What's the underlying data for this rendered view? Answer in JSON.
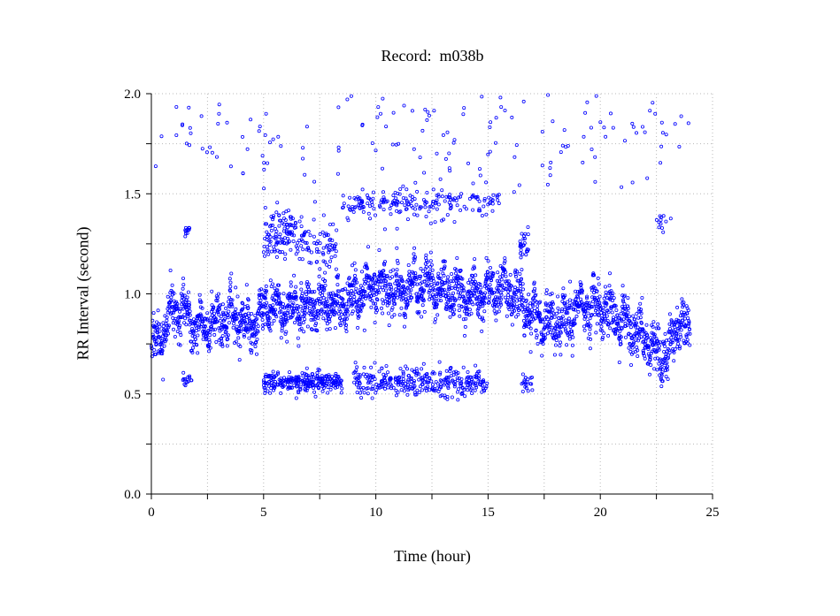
{
  "chart_data": {
    "type": "scatter",
    "title": "Record:  m038b",
    "xlabel": "Time (hour)",
    "ylabel": "RR Interval (second)",
    "xlim": [
      0,
      25
    ],
    "ylim": [
      0.0,
      2.0
    ],
    "xticks": [
      0,
      5,
      10,
      15,
      20,
      25
    ],
    "xtick_labels": [
      "0",
      "5",
      "10",
      "15",
      "20",
      "25"
    ],
    "x_minor_step": 2.5,
    "yticks": [
      0.0,
      0.5,
      1.0,
      1.5,
      2.0
    ],
    "ytick_labels": [
      "0.0",
      "0.5",
      "1.0",
      "1.5",
      "2.0"
    ],
    "y_minor_step": 0.25,
    "grid": true,
    "legend": "none",
    "marker": "small open circle",
    "color": "#0000ff",
    "trend": {
      "x": [
        0,
        0.5,
        1.0,
        1.5,
        2.0,
        2.5,
        3.0,
        3.5,
        4.0,
        4.5,
        5.0,
        6.0,
        7.0,
        8.0,
        9.0,
        10.0,
        10.5,
        11.0,
        12.0,
        13.0,
        14.0,
        15.0,
        16.0,
        16.5,
        17.0,
        18.0,
        19.0,
        20.0,
        21.0,
        21.5,
        22.0,
        22.5,
        23.0,
        23.5,
        24.0
      ],
      "y": [
        0.75,
        0.8,
        0.93,
        0.9,
        0.84,
        0.83,
        0.86,
        0.9,
        0.88,
        0.82,
        0.92,
        0.94,
        0.93,
        0.95,
        0.98,
        1.05,
        1.03,
        1.0,
        1.05,
        1.02,
        1.0,
        1.02,
        1.03,
        0.95,
        0.88,
        0.86,
        0.92,
        0.95,
        0.85,
        0.82,
        0.78,
        0.7,
        0.68,
        0.88,
        0.8
      ],
      "spread": 0.09
    },
    "ectopic_clusters": [
      {
        "x_range": [
          5.0,
          8.5
        ],
        "y_center": 0.56,
        "y_spread": 0.025,
        "count": 260
      },
      {
        "x_range": [
          9.0,
          15.0
        ],
        "y_center": 0.56,
        "y_spread": 0.035,
        "count": 320
      },
      {
        "x_range": [
          16.5,
          17.0
        ],
        "y_center": 0.55,
        "y_spread": 0.02,
        "count": 20
      },
      {
        "x_range": [
          1.4,
          1.8
        ],
        "y_center": 0.57,
        "y_spread": 0.02,
        "count": 15
      },
      {
        "x_range": [
          5.0,
          6.5
        ],
        "y_center": 1.3,
        "y_spread": 0.06,
        "count": 110
      },
      {
        "x_range": [
          6.5,
          8.3
        ],
        "y_center": 1.25,
        "y_spread": 0.06,
        "count": 80
      },
      {
        "x_range": [
          8.5,
          15.5
        ],
        "y_center": 1.45,
        "y_spread": 0.04,
        "count": 200
      },
      {
        "x_range": [
          16.4,
          16.8
        ],
        "y_center": 1.25,
        "y_spread": 0.04,
        "count": 25
      },
      {
        "x_range": [
          1.5,
          1.7
        ],
        "y_center": 1.31,
        "y_spread": 0.02,
        "count": 12
      },
      {
        "x_range": [
          22.5,
          23.3
        ],
        "y_center": 1.35,
        "y_spread": 0.03,
        "count": 12
      },
      {
        "x_range": [
          0,
          24
        ],
        "y_center": 1.8,
        "y_spread": 0.15,
        "count": 170
      }
    ]
  }
}
